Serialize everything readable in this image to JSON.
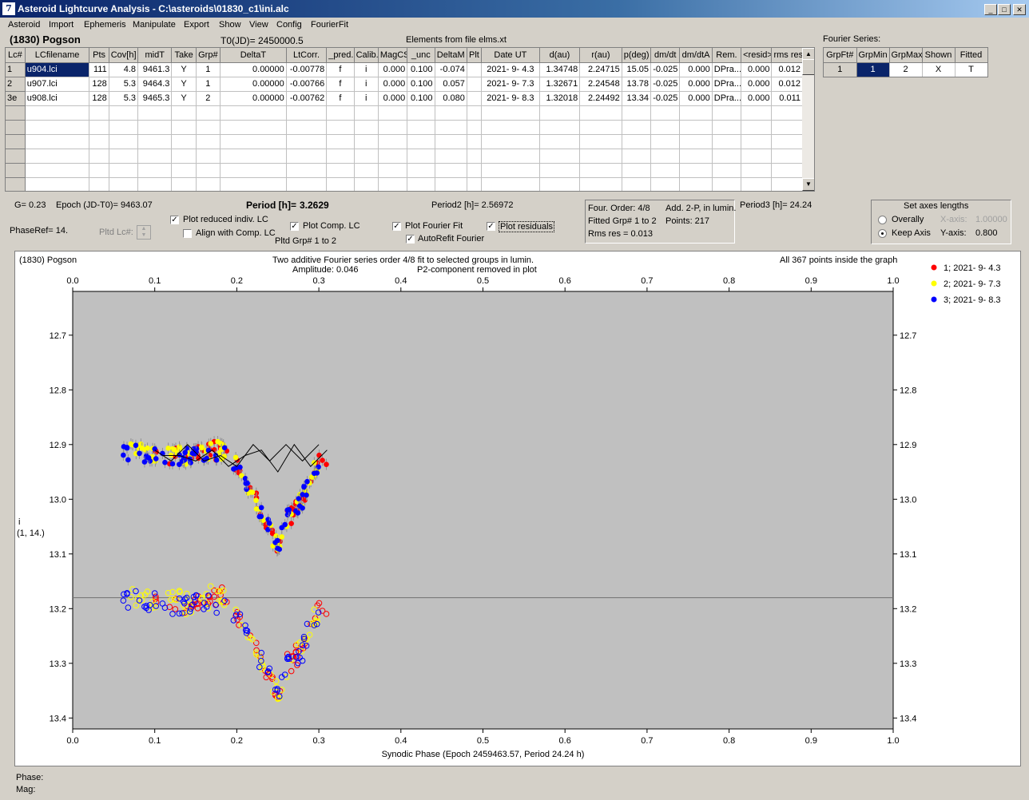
{
  "window": {
    "title": "Asteroid Lightcurve Analysis - C:\\asteroids\\01830_c1\\ini.alc",
    "icon": "app-icon"
  },
  "menu": [
    "Asteroid",
    "Import",
    "Ephemeris",
    "Manipulate",
    "Export",
    "Show",
    "View",
    "Config",
    "FourierFit"
  ],
  "header": {
    "asteroid": "(1830) Pogson",
    "t0": "T0(JD)= 2450000.5",
    "elements": "Elements from file elms.xt"
  },
  "table": {
    "columns": [
      "Lc#",
      "LCfilename",
      "Pts",
      "Cov[h]",
      "midT",
      "Take",
      "Grp#",
      "DeltaT",
      "LtCorr.",
      "_pred.",
      "Calib.",
      "MagCS",
      "_unc",
      "DeltaM",
      "Plt",
      "Date UT",
      "d(au)",
      "r(au)",
      "p(deg)",
      "dm/dt",
      "dm/dtA",
      "Rem.",
      "<resid>",
      "rms res"
    ],
    "rows": [
      [
        "1",
        "u904.lci",
        "111",
        "4.8",
        "9461.3",
        "Y",
        "1",
        "0.00000",
        "-0.00778",
        "f",
        "i",
        "0.000",
        "0.100",
        "-0.074",
        "",
        "2021- 9- 4.3",
        "1.34748",
        "2.24715",
        "15.05",
        "-0.025",
        "0.000",
        "DPra...",
        "0.000",
        "0.012"
      ],
      [
        "2",
        "u907.lci",
        "128",
        "5.3",
        "9464.3",
        "Y",
        "1",
        "0.00000",
        "-0.00766",
        "f",
        "i",
        "0.000",
        "0.100",
        "0.057",
        "",
        "2021- 9- 7.3",
        "1.32671",
        "2.24548",
        "13.78",
        "-0.025",
        "0.000",
        "DPra...",
        "0.000",
        "0.012"
      ],
      [
        "3e",
        "u908.lci",
        "128",
        "5.3",
        "9465.3",
        "Y",
        "2",
        "0.00000",
        "-0.00762",
        "f",
        "i",
        "0.000",
        "0.100",
        "0.080",
        "",
        "2021- 9- 8.3",
        "1.32018",
        "2.24492",
        "13.34",
        "-0.025",
        "0.000",
        "DPra...",
        "0.000",
        "0.011"
      ]
    ],
    "empty_rows": 6
  },
  "fourier_series": {
    "label": "Fourier Series:",
    "columns": [
      "GrpFt#",
      "GrpMin",
      "GrpMax",
      "Shown",
      "Fitted"
    ],
    "row": [
      "1",
      "1",
      "2",
      "X",
      "T"
    ]
  },
  "info": {
    "g": "G= 0.23",
    "epoch": "Epoch (JD-T0)= 9463.07",
    "period_label": "Period [h]=",
    "period_value": "3.2629",
    "period2": "Period2 [h]= 2.56972",
    "period3": "Period3 [h]= 24.24",
    "phaseref": "PhaseRef= 14.",
    "pltd_lc": "Pltd Lc#:",
    "pltd_grp": "Pltd Grp#  1   to   2"
  },
  "checkboxes": {
    "plot_reduced": {
      "label": "Plot reduced indiv. LC",
      "checked": true
    },
    "align_comp": {
      "label": "Align with Comp. LC",
      "checked": false
    },
    "plot_comp": {
      "label": "Plot Comp. LC",
      "checked": true
    },
    "plot_fourier": {
      "label": "Plot Fourier Fit",
      "checked": true
    },
    "autorefit": {
      "label": "AutoRefit Fourier",
      "checked": true
    },
    "plot_residuals": {
      "label": "Plot residuals",
      "checked": true
    }
  },
  "fit_panel": {
    "order": "Four. Order:  4/8",
    "add": "Add. 2-P, in lumin.",
    "fitted": "Fitted Grp# 1 to 2",
    "points": "Points: 217",
    "rms": "Rms res     = 0.013"
  },
  "axes_panel": {
    "title": "Set axes lengths",
    "overally": "Overally",
    "keep_axis": "Keep Axis",
    "selected": "keep_axis",
    "xaxis_label": "X-axis:",
    "xaxis_value": "1.00000",
    "yaxis_label": "Y-axis:",
    "yaxis_value": "0.800"
  },
  "plot_texts": {
    "corner": "(1830) Pogson",
    "line1": "Two additive Fourier series order 4/8 fit to selected groups in lumin.",
    "amplitude": "Amplitude: 0.046",
    "p2": "P2-component removed in plot",
    "inside": "All 367 points inside the graph",
    "ylabel1": "i",
    "ylabel2": "(1, 14.)"
  },
  "status": {
    "phase": "Phase:",
    "mag": "Mag:"
  },
  "colors": {
    "s1": "#ff0000",
    "s2": "#ffff00",
    "s3": "#0000ff",
    "plot_bg": "#c0c0c0",
    "selected": "#0a246a"
  },
  "chart_data": {
    "type": "scatter",
    "xlabel": "Synodic Phase (Epoch 2459463.57, Period 24.24 h)",
    "ylabel": "i",
    "xlim": [
      0,
      1
    ],
    "ylim": [
      13.42,
      12.62
    ],
    "y_inverted": true,
    "xticks": [
      "0.0",
      "0.1",
      "0.2",
      "0.3",
      "0.4",
      "0.5",
      "0.6",
      "0.7",
      "0.8",
      "0.9",
      "1.0"
    ],
    "yticks": [
      "12.7",
      "12.8",
      "12.9",
      "13.0",
      "13.1",
      "13.2",
      "13.3",
      "13.4"
    ],
    "residual_line": 13.18,
    "legend_position": "top-right",
    "series": [
      {
        "name": "1; 2021- 9- 4.3",
        "color": "#ff0000"
      },
      {
        "name": "2; 2021- 9- 7.3",
        "color": "#ffff00"
      },
      {
        "name": "3; 2021- 9- 8.3",
        "color": "#0000ff"
      }
    ],
    "profile": {
      "x": [
        0.06,
        0.1,
        0.14,
        0.18,
        0.2,
        0.22,
        0.24,
        0.25,
        0.26,
        0.28,
        0.3
      ],
      "y": [
        12.91,
        12.92,
        12.92,
        12.91,
        12.94,
        12.99,
        13.06,
        13.09,
        13.04,
        13.0,
        12.93
      ]
    },
    "fit_curves": [
      {
        "x": [
          0.11,
          0.13,
          0.15,
          0.17,
          0.19,
          0.21,
          0.23,
          0.25,
          0.27,
          0.29,
          0.31
        ],
        "y": [
          12.92,
          12.92,
          12.93,
          12.91,
          12.94,
          12.92,
          12.91,
          12.95,
          12.9,
          12.94,
          12.91
        ]
      },
      {
        "x": [
          0.1,
          0.12,
          0.14,
          0.16,
          0.18,
          0.2,
          0.22,
          0.24,
          0.26,
          0.28,
          0.3
        ],
        "y": [
          12.91,
          12.93,
          12.9,
          12.93,
          12.92,
          12.94,
          12.9,
          12.93,
          12.9,
          12.93,
          12.9
        ]
      }
    ]
  }
}
